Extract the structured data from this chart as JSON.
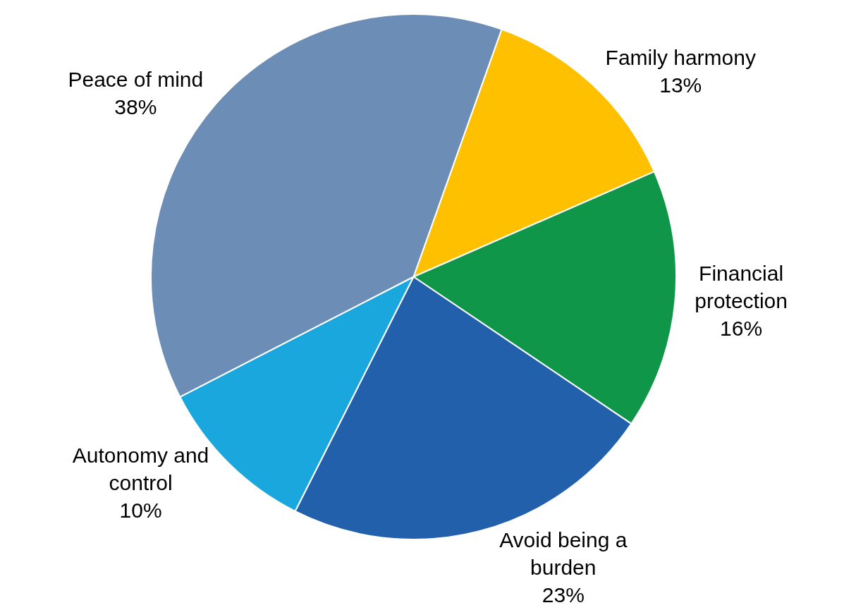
{
  "chart_data": {
    "type": "pie",
    "categories": [
      "Family harmony",
      "Financial protection",
      "Avoid being a burden",
      "Autonomy and control",
      "Peace of mind"
    ],
    "values": [
      13,
      16,
      23,
      10,
      38
    ],
    "value_labels": [
      "13%",
      "16%",
      "23%",
      "10%",
      "38%"
    ],
    "colors": [
      "#ffc000",
      "#109649",
      "#2260ac",
      "#19a7de",
      "#6c8eb6"
    ],
    "legend": false
  }
}
